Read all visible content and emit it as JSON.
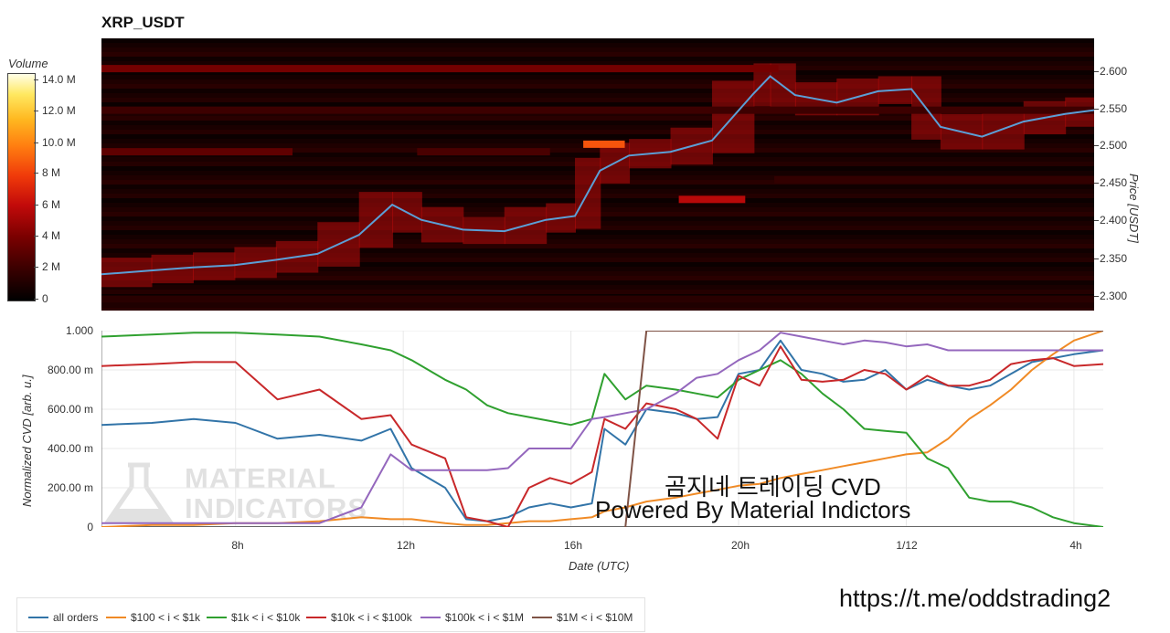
{
  "title": "XRP_USDT",
  "colorbar": {
    "label": "Volume",
    "ticks": [
      "14.0 M",
      "12.0 M",
      "10.0 M",
      "8 M",
      "6 M",
      "4 M",
      "2 M",
      "0"
    ]
  },
  "price_axis": {
    "label": "Price [USDT]",
    "ticks": [
      "2.600",
      "2.550",
      "2.500",
      "2.450",
      "2.400",
      "2.350",
      "2.300"
    ]
  },
  "cvd_axis": {
    "label": "Normalized CVD [arb. u.]",
    "ticks": [
      "1.000",
      "800.00 m",
      "600.00 m",
      "400.00 m",
      "200.00 m",
      "0"
    ]
  },
  "x_axis": {
    "label": "Date (UTC)",
    "ticks": [
      "8h",
      "12h",
      "16h",
      "20h",
      "1/12",
      "4h"
    ]
  },
  "watermark": {
    "line1": "MATERIAL",
    "line2": "INDICATORS"
  },
  "overlay": {
    "line1": "곰지네 트레이딩 CVD",
    "line2": "Powered By Material Indictors",
    "link": "https://t.me/oddstrading2"
  },
  "colors": {
    "all_orders": "#3274a8",
    "b100_1k": "#f08a25",
    "b1k_10k": "#2fa02f",
    "b10k_100k": "#c8282a",
    "b100k_1m": "#9467bd",
    "b1m_10m": "#7f5346",
    "price_line": "#5b9fd6"
  },
  "chart_data": [
    {
      "type": "heatmap",
      "title": "XRP_USDT",
      "ylabel": "Price [USDT]",
      "ylim": [
        2.285,
        2.645
      ],
      "colorbar_label": "Volume",
      "colorbar_range": [
        0,
        15000000
      ],
      "strong_levels": [
        {
          "price": 2.605,
          "volume": 4000000,
          "x_range": [
            "4.8h",
            "21.1h"
          ]
        },
        {
          "price": 2.55,
          "volume": 2200000,
          "x_range": [
            "4.8h",
            "28.7h"
          ]
        },
        {
          "price": 2.495,
          "volume": 3300000,
          "x_range": [
            "4.8h",
            "9.4h"
          ]
        },
        {
          "price": 2.495,
          "volume": 2600000,
          "x_range": [
            "12.4h",
            "15.6h"
          ]
        },
        {
          "price": 2.505,
          "volume": 9000000,
          "x_range": [
            "16.4h",
            "17.4h"
          ]
        },
        {
          "price": 2.432,
          "volume": 6000000,
          "x_range": [
            "18.7h",
            "20.3h"
          ]
        },
        {
          "price": 2.458,
          "volume": 1800000,
          "x_range": [
            "21.0h",
            "28.7h"
          ]
        },
        {
          "price": 2.3,
          "volume": 1500000,
          "x_range": [
            "4.8h",
            "28.7h"
          ]
        }
      ],
      "price_series": {
        "name": "",
        "x": [
          "4.8h",
          "6h",
          "7h",
          "8h",
          "9h",
          "10h",
          "11h",
          "11.8h",
          "12.5h",
          "13.5h",
          "14.5h",
          "15.5h",
          "16.2h",
          "16.8h",
          "17.5h",
          "18.5h",
          "19.5h",
          "20.5h",
          "20.9h",
          "21.5h",
          "22.5h",
          "23.5h",
          "24.3h",
          "25h",
          "26h",
          "27h",
          "28h",
          "28.7h"
        ],
        "y": [
          2.333,
          2.338,
          2.342,
          2.345,
          2.352,
          2.36,
          2.385,
          2.425,
          2.405,
          2.392,
          2.39,
          2.405,
          2.41,
          2.47,
          2.49,
          2.495,
          2.51,
          2.572,
          2.595,
          2.57,
          2.56,
          2.575,
          2.578,
          2.528,
          2.515,
          2.535,
          2.545,
          2.55
        ]
      }
    },
    {
      "type": "line",
      "xlabel": "Date (UTC)",
      "ylabel": "Normalized CVD [arb. u.]",
      "ylim": [
        0,
        1.0
      ],
      "legend_position": "bottom",
      "x": [
        "4.8h",
        "6h",
        "7h",
        "8h",
        "9h",
        "10h",
        "11h",
        "11.7h",
        "12.2h",
        "13h",
        "13.5h",
        "14h",
        "14.5h",
        "15h",
        "15.5h",
        "16h",
        "16.5h",
        "16.8h",
        "17.3h",
        "17.8h",
        "18.5h",
        "19h",
        "19.5h",
        "20h",
        "20.5h",
        "21h",
        "21.5h",
        "22h",
        "22.5h",
        "23h",
        "23.5h",
        "24h",
        "24.5h",
        "25h",
        "25.5h",
        "26h",
        "26.5h",
        "27h",
        "27.5h",
        "28h",
        "28.7h"
      ],
      "series": [
        {
          "name": "all orders",
          "values": [
            0.52,
            0.53,
            0.55,
            0.53,
            0.45,
            0.47,
            0.44,
            0.5,
            0.3,
            0.2,
            0.04,
            0.03,
            0.05,
            0.1,
            0.12,
            0.1,
            0.12,
            0.5,
            0.42,
            0.6,
            0.58,
            0.55,
            0.56,
            0.78,
            0.8,
            0.95,
            0.8,
            0.78,
            0.74,
            0.75,
            0.8,
            0.7,
            0.75,
            0.72,
            0.7,
            0.72,
            0.78,
            0.84,
            0.86,
            0.88,
            0.9
          ]
        },
        {
          "name": "$100 < i < $1k",
          "values": [
            0.0,
            0.01,
            0.01,
            0.02,
            0.02,
            0.03,
            0.05,
            0.04,
            0.04,
            0.02,
            0.01,
            0.01,
            0.02,
            0.03,
            0.03,
            0.04,
            0.05,
            0.08,
            0.1,
            0.13,
            0.15,
            0.17,
            0.19,
            0.21,
            0.22,
            0.25,
            0.27,
            0.29,
            0.31,
            0.33,
            0.35,
            0.37,
            0.38,
            0.45,
            0.55,
            0.62,
            0.7,
            0.8,
            0.88,
            0.95,
            1.0
          ]
        },
        {
          "name": "$1k < i < $10k",
          "values": [
            0.97,
            0.98,
            0.99,
            0.99,
            0.98,
            0.97,
            0.93,
            0.9,
            0.85,
            0.75,
            0.7,
            0.62,
            0.58,
            0.56,
            0.54,
            0.52,
            0.55,
            0.78,
            0.65,
            0.72,
            0.7,
            0.68,
            0.66,
            0.75,
            0.8,
            0.85,
            0.78,
            0.68,
            0.6,
            0.5,
            0.49,
            0.48,
            0.35,
            0.3,
            0.15,
            0.13,
            0.13,
            0.1,
            0.05,
            0.02,
            0.0
          ]
        },
        {
          "name": "$10k < i < $100k",
          "values": [
            0.82,
            0.83,
            0.84,
            0.84,
            0.65,
            0.7,
            0.55,
            0.57,
            0.42,
            0.35,
            0.05,
            0.03,
            0.0,
            0.2,
            0.25,
            0.22,
            0.28,
            0.55,
            0.5,
            0.63,
            0.6,
            0.55,
            0.45,
            0.77,
            0.72,
            0.92,
            0.75,
            0.74,
            0.75,
            0.8,
            0.78,
            0.7,
            0.77,
            0.72,
            0.72,
            0.75,
            0.83,
            0.85,
            0.86,
            0.82,
            0.83
          ]
        },
        {
          "name": "$100k < i < $1M",
          "values": [
            0.02,
            0.02,
            0.02,
            0.02,
            0.02,
            0.02,
            0.1,
            0.37,
            0.29,
            0.29,
            0.29,
            0.29,
            0.3,
            0.4,
            0.4,
            0.4,
            0.55,
            0.56,
            0.58,
            0.6,
            0.68,
            0.76,
            0.78,
            0.85,
            0.9,
            0.99,
            0.97,
            0.95,
            0.93,
            0.95,
            0.94,
            0.92,
            0.93,
            0.9,
            0.9,
            0.9,
            0.9,
            0.9,
            0.9,
            0.9,
            0.9
          ]
        },
        {
          "name": "$1M < i < $10M",
          "values": [
            null,
            null,
            null,
            null,
            null,
            null,
            null,
            null,
            null,
            null,
            null,
            null,
            null,
            null,
            null,
            null,
            null,
            null,
            0.0,
            1.0,
            1.0,
            1.0,
            1.0,
            1.0,
            1.0,
            1.0,
            1.0,
            1.0,
            1.0,
            1.0,
            1.0,
            1.0,
            1.0,
            1.0,
            1.0,
            1.0,
            1.0,
            1.0,
            1.0,
            1.0,
            1.0
          ]
        }
      ]
    }
  ]
}
